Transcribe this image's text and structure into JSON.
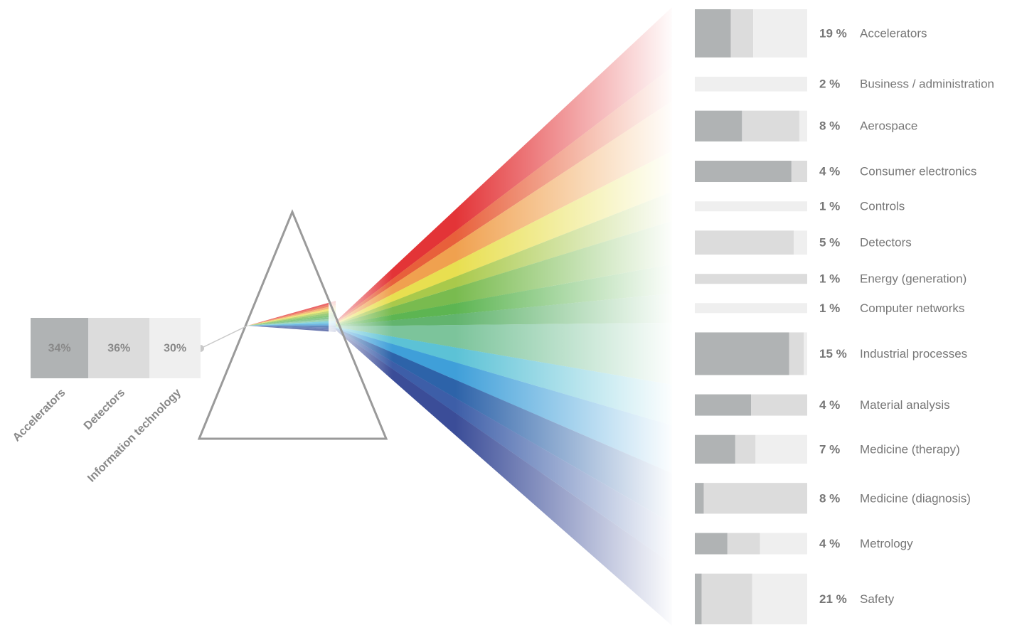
{
  "chart_data": [
    {
      "type": "stacked-bar",
      "categories": [
        "Accelerators",
        "Detectors",
        "Information technology"
      ],
      "values": [
        34,
        36,
        30
      ],
      "value_labels": [
        "34%",
        "36%",
        "30%"
      ],
      "colors": [
        "#b0b3b4",
        "#dcdcdc",
        "#efefef"
      ]
    },
    {
      "type": "stacked-row",
      "categories": [
        "Accelerators",
        "Business / administration",
        "Aerospace",
        "Consumer electronics",
        "Controls",
        "Detectors",
        "Energy (generation)",
        "Computer networks",
        "Industrial processes",
        "Material analysis",
        "Medicine (therapy)",
        "Medicine (diagnosis)",
        "Metrology",
        "Safety"
      ],
      "values": [
        19,
        2,
        8,
        4,
        1,
        5,
        1,
        1,
        15,
        4,
        7,
        8,
        4,
        21
      ],
      "value_labels": [
        "19 %",
        "2 %",
        "8 %",
        "4 %",
        "1 %",
        "5 %",
        "1 %",
        "1 %",
        "15 %",
        "4 %",
        "7 %",
        "8 %",
        "4 %",
        "21 %"
      ],
      "series": [
        {
          "color": "#b0b3b4",
          "values": [
            32,
            0,
            42,
            86,
            0,
            0,
            0,
            0,
            84,
            50,
            36,
            8,
            29,
            6
          ]
        },
        {
          "color": "#dcdcdc",
          "values": [
            20,
            0,
            51,
            14,
            0,
            88,
            100,
            0,
            13,
            50,
            18,
            92,
            29,
            45
          ]
        },
        {
          "color": "#efefef",
          "values": [
            48,
            100,
            7,
            0,
            100,
            12,
            0,
            100,
            3,
            0,
            46,
            0,
            42,
            49
          ]
        }
      ]
    }
  ]
}
